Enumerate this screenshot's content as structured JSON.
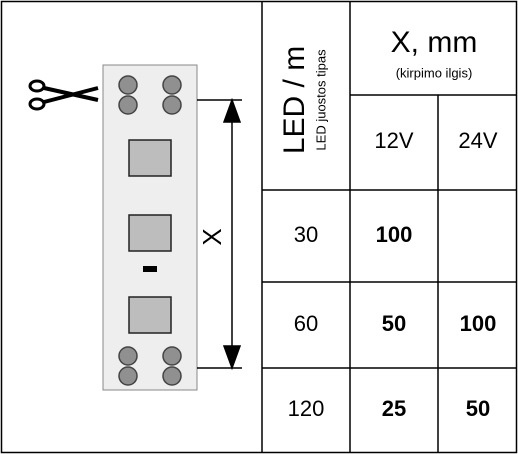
{
  "diagram": {
    "label": "X"
  },
  "table": {
    "led_header": "LED / m",
    "led_subheader": "LED juostos tipas",
    "x_header": "X, mm",
    "x_subheader": "(kirpimo ilgis)",
    "voltages": [
      "12V",
      "24V"
    ],
    "rows": [
      [
        "30",
        "100"
      ],
      [
        "60",
        "50",
        "100"
      ],
      [
        "120",
        "25",
        "50"
      ]
    ]
  }
}
